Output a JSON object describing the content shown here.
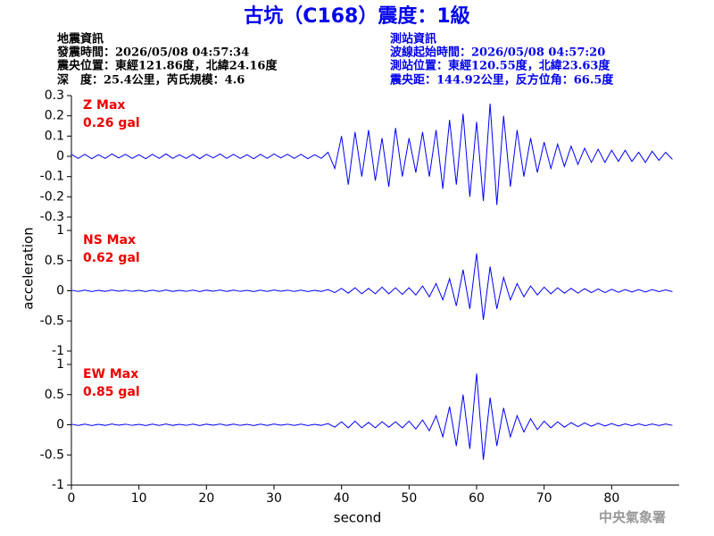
{
  "title": "古坑（C168）震度：1級",
  "quake_info": [
    "地震資訊",
    "發震時間：2026/05/08 04:57:34",
    "震央位置：東經121.86度，北緯24.16度",
    "深　度：25.4公里，芮氏規模：4.6"
  ],
  "station_info": [
    "測站資訊",
    "波線起始時間：2026/05/08 04:57:20",
    "測站位置：東經120.55度，北緯23.63度",
    "震央距：144.92公里，反方位角：66.5度"
  ],
  "footer": "中央氣象署",
  "chart_data": [
    {
      "type": "line",
      "annotation": [
        "Z Max",
        "0.26 gal"
      ],
      "color": "#0000ff",
      "x": [
        0,
        1,
        2,
        3,
        4,
        5,
        6,
        7,
        8,
        9,
        10,
        11,
        12,
        13,
        14,
        15,
        16,
        17,
        18,
        19,
        20,
        21,
        22,
        23,
        24,
        25,
        26,
        27,
        28,
        29,
        30,
        31,
        32,
        33,
        34,
        35,
        36,
        37,
        38,
        39,
        40,
        41,
        42,
        43,
        44,
        45,
        46,
        47,
        48,
        49,
        50,
        51,
        52,
        53,
        54,
        55,
        56,
        57,
        58,
        59,
        60,
        61,
        62,
        63,
        64,
        65,
        66,
        67,
        68,
        69,
        70,
        71,
        72,
        73,
        74,
        75,
        76,
        77,
        78,
        79,
        80,
        81,
        82,
        83,
        84,
        85,
        86,
        87,
        88,
        89
      ],
      "values": [
        0.01,
        -0.01,
        0.01,
        -0.012,
        0.008,
        -0.01,
        0.012,
        -0.008,
        0.01,
        -0.01,
        0.008,
        -0.012,
        0.01,
        -0.01,
        0.012,
        -0.01,
        0.008,
        -0.01,
        0.01,
        -0.012,
        0.01,
        -0.008,
        0.012,
        -0.01,
        0.01,
        -0.01,
        0.008,
        -0.012,
        0.01,
        -0.01,
        0.012,
        -0.008,
        0.01,
        -0.01,
        0.01,
        -0.012,
        0.008,
        -0.01,
        0.02,
        -0.06,
        0.1,
        -0.14,
        0.12,
        -0.1,
        0.13,
        -0.12,
        0.09,
        -0.15,
        0.14,
        -0.1,
        0.09,
        -0.08,
        0.12,
        -0.1,
        0.13,
        -0.16,
        0.18,
        -0.14,
        0.21,
        -0.2,
        0.17,
        -0.22,
        0.26,
        -0.24,
        0.2,
        -0.15,
        0.13,
        -0.1,
        0.09,
        -0.08,
        0.07,
        -0.06,
        0.06,
        -0.05,
        0.05,
        -0.04,
        0.04,
        -0.03,
        0.035,
        -0.03,
        0.03,
        -0.025,
        0.03,
        -0.025,
        0.02,
        -0.03,
        0.025,
        -0.02,
        0.02,
        -0.015
      ],
      "xlim": [
        0,
        90
      ],
      "ylim": [
        -0.3,
        0.3
      ],
      "yticks": [
        -0.3,
        -0.2,
        -0.1,
        0,
        0.1,
        0.2,
        0.3
      ]
    },
    {
      "type": "line",
      "annotation": [
        "NS Max",
        "0.62 gal"
      ],
      "color": "#0000ff",
      "ylabel": "acceleration",
      "x": [
        0,
        1,
        2,
        3,
        4,
        5,
        6,
        7,
        8,
        9,
        10,
        11,
        12,
        13,
        14,
        15,
        16,
        17,
        18,
        19,
        20,
        21,
        22,
        23,
        24,
        25,
        26,
        27,
        28,
        29,
        30,
        31,
        32,
        33,
        34,
        35,
        36,
        37,
        38,
        39,
        40,
        41,
        42,
        43,
        44,
        45,
        46,
        47,
        48,
        49,
        50,
        51,
        52,
        53,
        54,
        55,
        56,
        57,
        58,
        59,
        60,
        61,
        62,
        63,
        64,
        65,
        66,
        67,
        68,
        69,
        70,
        71,
        72,
        73,
        74,
        75,
        76,
        77,
        78,
        79,
        80,
        81,
        82,
        83,
        84,
        85,
        86,
        87,
        88,
        89
      ],
      "values": [
        0.01,
        -0.01,
        0.01,
        -0.012,
        0.008,
        -0.01,
        0.012,
        -0.008,
        0.01,
        -0.01,
        0.008,
        -0.012,
        0.01,
        -0.01,
        0.012,
        -0.01,
        0.008,
        -0.01,
        0.01,
        -0.012,
        0.01,
        -0.008,
        0.012,
        -0.01,
        0.01,
        -0.01,
        0.008,
        -0.012,
        0.01,
        -0.01,
        0.012,
        -0.008,
        0.01,
        -0.01,
        0.01,
        -0.012,
        0.008,
        -0.01,
        0.02,
        -0.03,
        0.04,
        -0.04,
        0.05,
        -0.05,
        0.04,
        -0.05,
        0.06,
        -0.05,
        0.05,
        -0.06,
        0.05,
        -0.07,
        0.08,
        -0.1,
        0.12,
        -0.15,
        0.2,
        -0.25,
        0.35,
        -0.3,
        0.62,
        -0.48,
        0.4,
        -0.3,
        0.22,
        -0.15,
        0.12,
        -0.1,
        0.08,
        -0.07,
        0.06,
        -0.05,
        0.05,
        -0.04,
        0.04,
        -0.04,
        0.035,
        -0.03,
        0.03,
        -0.03,
        0.025,
        -0.025,
        0.02,
        -0.02,
        0.02,
        -0.02,
        0.02,
        -0.015,
        0.015,
        -0.015
      ],
      "xlim": [
        0,
        90
      ],
      "ylim": [
        -1,
        1
      ],
      "yticks": [
        -1,
        -0.5,
        0,
        0.5,
        1
      ]
    },
    {
      "type": "line",
      "annotation": [
        "EW Max",
        "0.85 gal"
      ],
      "color": "#0000ff",
      "xlabel": "second",
      "x": [
        0,
        1,
        2,
        3,
        4,
        5,
        6,
        7,
        8,
        9,
        10,
        11,
        12,
        13,
        14,
        15,
        16,
        17,
        18,
        19,
        20,
        21,
        22,
        23,
        24,
        25,
        26,
        27,
        28,
        29,
        30,
        31,
        32,
        33,
        34,
        35,
        36,
        37,
        38,
        39,
        40,
        41,
        42,
        43,
        44,
        45,
        46,
        47,
        48,
        49,
        50,
        51,
        52,
        53,
        54,
        55,
        56,
        57,
        58,
        59,
        60,
        61,
        62,
        63,
        64,
        65,
        66,
        67,
        68,
        69,
        70,
        71,
        72,
        73,
        74,
        75,
        76,
        77,
        78,
        79,
        80,
        81,
        82,
        83,
        84,
        85,
        86,
        87,
        88,
        89
      ],
      "values": [
        0.01,
        -0.01,
        0.01,
        -0.012,
        0.008,
        -0.01,
        0.012,
        -0.008,
        0.01,
        -0.01,
        0.008,
        -0.012,
        0.01,
        -0.01,
        0.012,
        -0.01,
        0.008,
        -0.01,
        0.01,
        -0.012,
        0.01,
        -0.008,
        0.012,
        -0.01,
        0.01,
        -0.01,
        0.008,
        -0.012,
        0.01,
        -0.01,
        0.012,
        -0.008,
        0.01,
        -0.01,
        0.01,
        -0.012,
        0.008,
        -0.01,
        0.02,
        -0.04,
        0.05,
        -0.05,
        0.06,
        -0.05,
        0.04,
        -0.05,
        0.05,
        -0.04,
        0.05,
        -0.05,
        0.06,
        -0.07,
        0.08,
        -0.1,
        0.15,
        -0.2,
        0.3,
        -0.35,
        0.5,
        -0.4,
        0.85,
        -0.58,
        0.45,
        -0.35,
        0.28,
        -0.2,
        0.15,
        -0.12,
        0.1,
        -0.08,
        0.06,
        -0.05,
        0.05,
        -0.04,
        0.035,
        -0.03,
        0.03,
        -0.025,
        0.025,
        -0.02,
        0.02,
        -0.02,
        0.015,
        -0.015,
        0.015,
        -0.015,
        0.012,
        -0.012,
        0.012,
        -0.01
      ],
      "xlim": [
        0,
        90
      ],
      "ylim": [
        -1,
        1
      ],
      "yticks": [
        -1,
        -0.5,
        0,
        0.5,
        1
      ],
      "xticks": [
        0,
        10,
        20,
        30,
        40,
        50,
        60,
        70,
        80
      ]
    }
  ]
}
